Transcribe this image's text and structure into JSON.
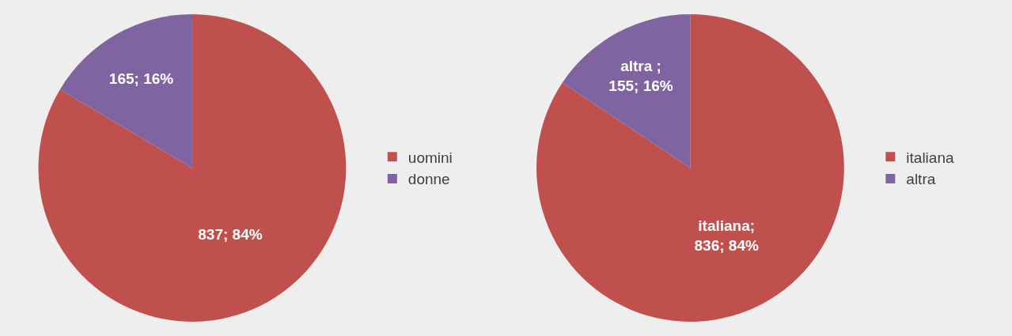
{
  "chart_data": [
    {
      "type": "pie",
      "categories": [
        "uomini",
        "donne"
      ],
      "values": [
        837,
        165
      ],
      "colors": [
        "#c0504d",
        "#8064a2"
      ],
      "value_labels": [
        "837; 84%",
        "165; 16%"
      ],
      "legend": "right"
    },
    {
      "type": "pie",
      "categories": [
        "italiana",
        "altra"
      ],
      "values": [
        836,
        155
      ],
      "colors": [
        "#c0504d",
        "#8064a2"
      ],
      "value_labels": [
        "italiana;\n836; 84%",
        "altra ;\n155; 16%"
      ],
      "legend": "right"
    }
  ]
}
